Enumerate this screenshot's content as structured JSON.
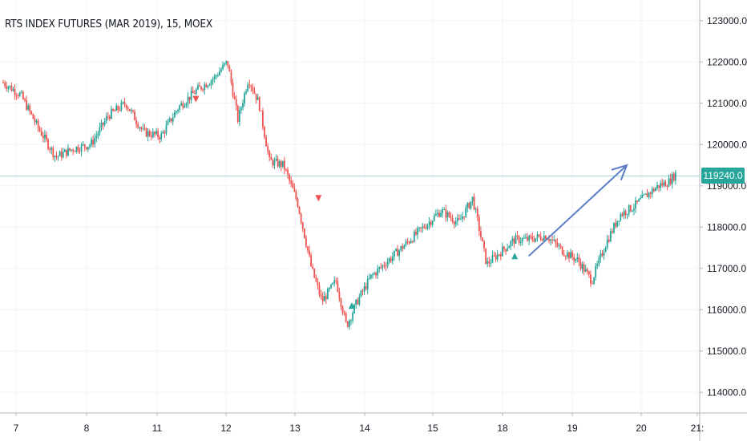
{
  "title": "RTS INDEX FUTURES (MAR 2019), 15, MOEX",
  "colors": {
    "up": "#26a69a",
    "down": "#ef5350",
    "grid": "#f0f3fa",
    "price_line": "#9fd8d3",
    "price_tag": "#26a69a",
    "arrow": "#5b7cc6",
    "axis_text": "#131722"
  },
  "chart_data": {
    "type": "candlestick",
    "ylim": [
      113500,
      123500
    ],
    "y_ticks": [
      114000,
      115000,
      116000,
      117000,
      118000,
      119000,
      120000,
      121000,
      122000,
      123000
    ],
    "y_tick_labels": [
      "114000.0",
      "115000.0",
      "116000.0",
      "117000.0",
      "118000.0",
      "119000.0",
      "120000.0",
      "121000.0",
      "122000.0",
      "123000.0"
    ],
    "x_tick_labels": [
      "7",
      "8",
      "11",
      "12",
      "13",
      "14",
      "15",
      "18",
      "19",
      "20",
      "21:"
    ],
    "last_price": 119240,
    "last_price_label": "119240.0",
    "price_path": [
      [
        0,
        121500
      ],
      [
        0.5,
        121200
      ],
      [
        1,
        120400
      ],
      [
        1.5,
        119700
      ],
      [
        2,
        119900
      ],
      [
        2.5,
        120000
      ],
      [
        3,
        120700
      ],
      [
        3.5,
        121000
      ],
      [
        4,
        120300
      ],
      [
        4.5,
        120200
      ],
      [
        5,
        120900
      ],
      [
        5.5,
        121300
      ],
      [
        6,
        121600
      ],
      [
        6.4,
        122000
      ],
      [
        6.7,
        120600
      ],
      [
        7,
        121600
      ],
      [
        7.3,
        121000
      ],
      [
        7.6,
        119600
      ],
      [
        8,
        119500
      ],
      [
        8.4,
        118600
      ],
      [
        8.8,
        117000
      ],
      [
        9.1,
        116200
      ],
      [
        9.5,
        116700
      ],
      [
        9.8,
        115600
      ],
      [
        10.1,
        116200
      ],
      [
        10.5,
        116800
      ],
      [
        11,
        117200
      ],
      [
        11.5,
        117600
      ],
      [
        12,
        118000
      ],
      [
        12.5,
        118400
      ],
      [
        13,
        118100
      ],
      [
        13.4,
        118700
      ],
      [
        13.8,
        117100
      ],
      [
        14.2,
        117400
      ],
      [
        14.6,
        117700
      ],
      [
        15,
        117700
      ],
      [
        15.5,
        117800
      ],
      [
        16,
        117400
      ],
      [
        16.4,
        117200
      ],
      [
        16.8,
        116700
      ],
      [
        17.2,
        117600
      ],
      [
        17.6,
        118300
      ],
      [
        18,
        118500
      ],
      [
        18.4,
        118800
      ],
      [
        18.7,
        119000
      ],
      [
        19,
        119100
      ],
      [
        19.2,
        119300
      ]
    ],
    "annotations": [
      {
        "type": "arrow",
        "from": [
          15.0,
          117300
        ],
        "to": [
          17.8,
          119500
        ]
      },
      {
        "type": "marker",
        "shape": "triangle-down",
        "color": "down",
        "at": [
          5.5,
          121100
        ]
      },
      {
        "type": "marker",
        "shape": "triangle-down",
        "color": "down",
        "at": [
          9.0,
          118700
        ]
      },
      {
        "type": "marker",
        "shape": "triangle-up",
        "color": "up",
        "at": [
          9.95,
          116100
        ]
      },
      {
        "type": "marker",
        "shape": "triangle-up",
        "color": "up",
        "at": [
          14.6,
          117300
        ]
      }
    ]
  }
}
